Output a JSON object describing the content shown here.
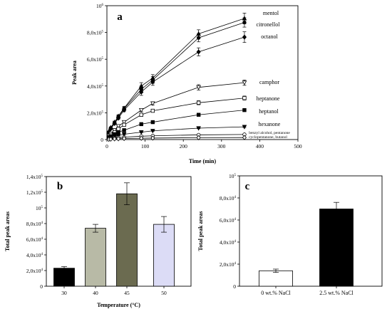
{
  "figure": {
    "panels": [
      {
        "id": "a",
        "label": "a"
      },
      {
        "id": "b",
        "label": "b"
      },
      {
        "id": "c",
        "label": "c"
      }
    ]
  },
  "chart_data": [
    {
      "panel": "a",
      "type": "line",
      "xlabel": "Time (min)",
      "ylabel": "Peak area",
      "xlim": [
        0,
        500
      ],
      "ylim": [
        0,
        1000000
      ],
      "x_ticks": [
        0,
        100,
        200,
        300,
        400,
        500
      ],
      "y_tick_labels": [
        {
          "value": 0,
          "mantissa": "0",
          "exp": ""
        },
        {
          "value": 200000,
          "mantissa": "2,0x10",
          "exp": "5"
        },
        {
          "value": 400000,
          "mantissa": "4,0x10",
          "exp": "5"
        },
        {
          "value": 600000,
          "mantissa": "6,0x10",
          "exp": "5"
        },
        {
          "value": 800000,
          "mantissa": "8,0x10",
          "exp": "5"
        },
        {
          "value": 1000000,
          "mantissa": "10",
          "exp": "6"
        }
      ],
      "x": [
        5,
        10,
        20,
        30,
        45,
        90,
        120,
        240,
        360
      ],
      "series": [
        {
          "name": "mentol",
          "marker": "triangle",
          "fill": "black",
          "values": [
            60000,
            90000,
            130000,
            175000,
            235000,
            400000,
            460000,
            790000,
            905000
          ],
          "err": [
            0,
            5000,
            8000,
            10000,
            12000,
            25000,
            25000,
            30000,
            40000
          ]
        },
        {
          "name": "citronellol",
          "marker": "circle",
          "fill": "black",
          "values": [
            55000,
            85000,
            125000,
            170000,
            230000,
            375000,
            445000,
            760000,
            875000
          ],
          "err": [
            0,
            5000,
            8000,
            10000,
            12000,
            25000,
            25000,
            30000,
            35000
          ]
        },
        {
          "name": "octanol",
          "marker": "diamond",
          "fill": "black",
          "values": [
            50000,
            80000,
            120000,
            160000,
            220000,
            355000,
            430000,
            655000,
            765000
          ],
          "err": [
            0,
            5000,
            8000,
            10000,
            12000,
            25000,
            25000,
            30000,
            40000
          ]
        },
        {
          "name": "camphor",
          "marker": "triangle-down",
          "fill": "white",
          "values": [
            30000,
            45000,
            70000,
            100000,
            130000,
            220000,
            270000,
            390000,
            425000
          ],
          "err": [
            0,
            3000,
            5000,
            6000,
            8000,
            12000,
            12000,
            20000,
            20000
          ]
        },
        {
          "name": "heptanone",
          "marker": "square",
          "fill": "white",
          "values": [
            20000,
            35000,
            55000,
            80000,
            110000,
            185000,
            215000,
            275000,
            310000
          ],
          "err": [
            0,
            3000,
            5000,
            6000,
            8000,
            10000,
            10000,
            15000,
            15000
          ]
        },
        {
          "name": "heptanol",
          "marker": "square",
          "fill": "black",
          "values": [
            15000,
            25000,
            40000,
            55000,
            70000,
            115000,
            130000,
            185000,
            220000
          ],
          "err": [
            0,
            2000,
            3000,
            4000,
            5000,
            6000,
            8000,
            8000,
            8000
          ]
        },
        {
          "name": "hexanone",
          "marker": "triangle-down",
          "fill": "black",
          "values": [
            10000,
            15000,
            22000,
            30000,
            40000,
            55000,
            65000,
            85000,
            95000
          ],
          "err": [
            0,
            1000,
            2000,
            2000,
            3000,
            3000,
            3000,
            4000,
            5000
          ]
        },
        {
          "name": "benzyl alcohol, pentanone",
          "marker": "circle",
          "fill": "white",
          "values": [
            5000,
            8000,
            12000,
            15000,
            18000,
            25000,
            28000,
            35000,
            38000
          ],
          "err": [
            0,
            0,
            0,
            0,
            0,
            2000,
            2000,
            3000,
            3000
          ]
        },
        {
          "name": "cyclopentanone, butanol",
          "marker": "diamond",
          "fill": "white",
          "values": [
            2000,
            3000,
            5000,
            6000,
            8000,
            10000,
            11000,
            14000,
            15000
          ],
          "err": [
            0,
            0,
            0,
            0,
            0,
            1000,
            1000,
            1000,
            1000
          ]
        }
      ]
    },
    {
      "panel": "b",
      "type": "bar",
      "xlabel": "Temperature (°C)",
      "ylabel": "Total peak areas",
      "ylim": [
        0,
        140000
      ],
      "y_tick_labels": [
        {
          "value": 0,
          "mantissa": "0",
          "exp": ""
        },
        {
          "value": 20000,
          "mantissa": "2,0x10",
          "exp": "4"
        },
        {
          "value": 40000,
          "mantissa": "4,0x10",
          "exp": "4"
        },
        {
          "value": 60000,
          "mantissa": "6,0x10",
          "exp": "4"
        },
        {
          "value": 80000,
          "mantissa": "8,0x10",
          "exp": "4"
        },
        {
          "value": 100000,
          "mantissa": "10",
          "exp": "5"
        },
        {
          "value": 120000,
          "mantissa": "1,2x10",
          "exp": "5"
        },
        {
          "value": 140000,
          "mantissa": "1,4x10",
          "exp": "5"
        }
      ],
      "categories": [
        "30",
        "40",
        "45",
        "50"
      ],
      "values": [
        23000,
        74000,
        118000,
        79000
      ],
      "err": [
        2000,
        5000,
        14000,
        10000
      ],
      "colors": [
        "#000000",
        "#b8baa6",
        "#6b6b50",
        "#dcdcf6"
      ]
    },
    {
      "panel": "c",
      "type": "bar",
      "xlabel": "",
      "ylabel": "Total peak areas",
      "ylim": [
        0,
        100000
      ],
      "y_tick_labels": [
        {
          "value": 0,
          "mantissa": "0",
          "exp": ""
        },
        {
          "value": 20000,
          "mantissa": "2,0x10",
          "exp": "4"
        },
        {
          "value": 40000,
          "mantissa": "4,0x10",
          "exp": "4"
        },
        {
          "value": 60000,
          "mantissa": "6,0x10",
          "exp": "4"
        },
        {
          "value": 80000,
          "mantissa": "8,0x10",
          "exp": "4"
        },
        {
          "value": 100000,
          "mantissa": "10",
          "exp": "5"
        }
      ],
      "categories": [
        "0 wt.% NaCl",
        "2.5 wt.% NaCl"
      ],
      "values": [
        14000,
        70000
      ],
      "err": [
        1500,
        6000
      ],
      "colors": [
        "#ffffff",
        "#000000"
      ]
    }
  ]
}
